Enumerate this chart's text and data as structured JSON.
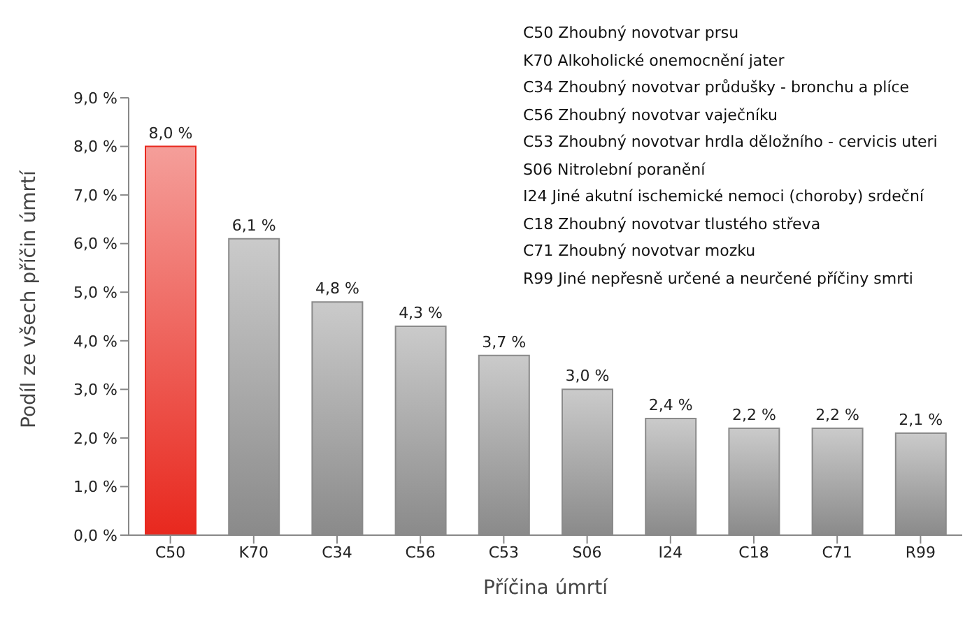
{
  "chart_data": {
    "type": "bar",
    "categories": [
      "C50",
      "K70",
      "C34",
      "C56",
      "C53",
      "S06",
      "I24",
      "C18",
      "C71",
      "R99"
    ],
    "values": [
      8.0,
      6.1,
      4.8,
      4.3,
      3.7,
      3.0,
      2.4,
      2.2,
      2.2,
      2.1
    ],
    "value_labels": [
      "8,0 %",
      "6,1 %",
      "4,8 %",
      "4,3 %",
      "3,7 %",
      "3,0 %",
      "2,4 %",
      "2,2 %",
      "2,2 %",
      "2,1 %"
    ],
    "colors": [
      "#e8281e",
      "#8a8a8a",
      "#8a8a8a",
      "#8a8a8a",
      "#8a8a8a",
      "#8a8a8a",
      "#8a8a8a",
      "#8a8a8a",
      "#8a8a8a",
      "#8a8a8a"
    ],
    "xlabel": "Příčina úmrtí",
    "ylabel": "Podíl ze všech příčin úmrtí",
    "ylim": [
      0,
      9
    ],
    "yticks": [
      {
        "value": 0,
        "label": "0,0 %"
      },
      {
        "value": 1,
        "label": "1,0 %"
      },
      {
        "value": 2,
        "label": "2,0 %"
      },
      {
        "value": 3,
        "label": "3,0 %"
      },
      {
        "value": 4,
        "label": "4,0 %"
      },
      {
        "value": 5,
        "label": "5,0 %"
      },
      {
        "value": 6,
        "label": "6,0 %"
      },
      {
        "value": 7,
        "label": "7,0 %"
      },
      {
        "value": 8,
        "label": "8,0 %"
      },
      {
        "value": 9,
        "label": "9,0 %"
      }
    ],
    "grid": false,
    "annotations": [
      "C50 Zhoubný novotvar prsu",
      "K70 Alkoholické onemocnění jater",
      "C34 Zhoubný novotvar průdušky - bronchu a plíce",
      "C56 Zhoubný novotvar vaječníku",
      "C53 Zhoubný novotvar hrdla děložního - cervicis uteri",
      "S06 Nitrolební poranění",
      "I24 Jiné akutní ischemické nemoci (choroby) srdeční",
      "C18 Zhoubný novotvar tlustého střeva",
      "C71 Zhoubný novotvar mozku",
      "R99 Jiné nepřesně určené a neurčené příčiny smrti"
    ]
  }
}
